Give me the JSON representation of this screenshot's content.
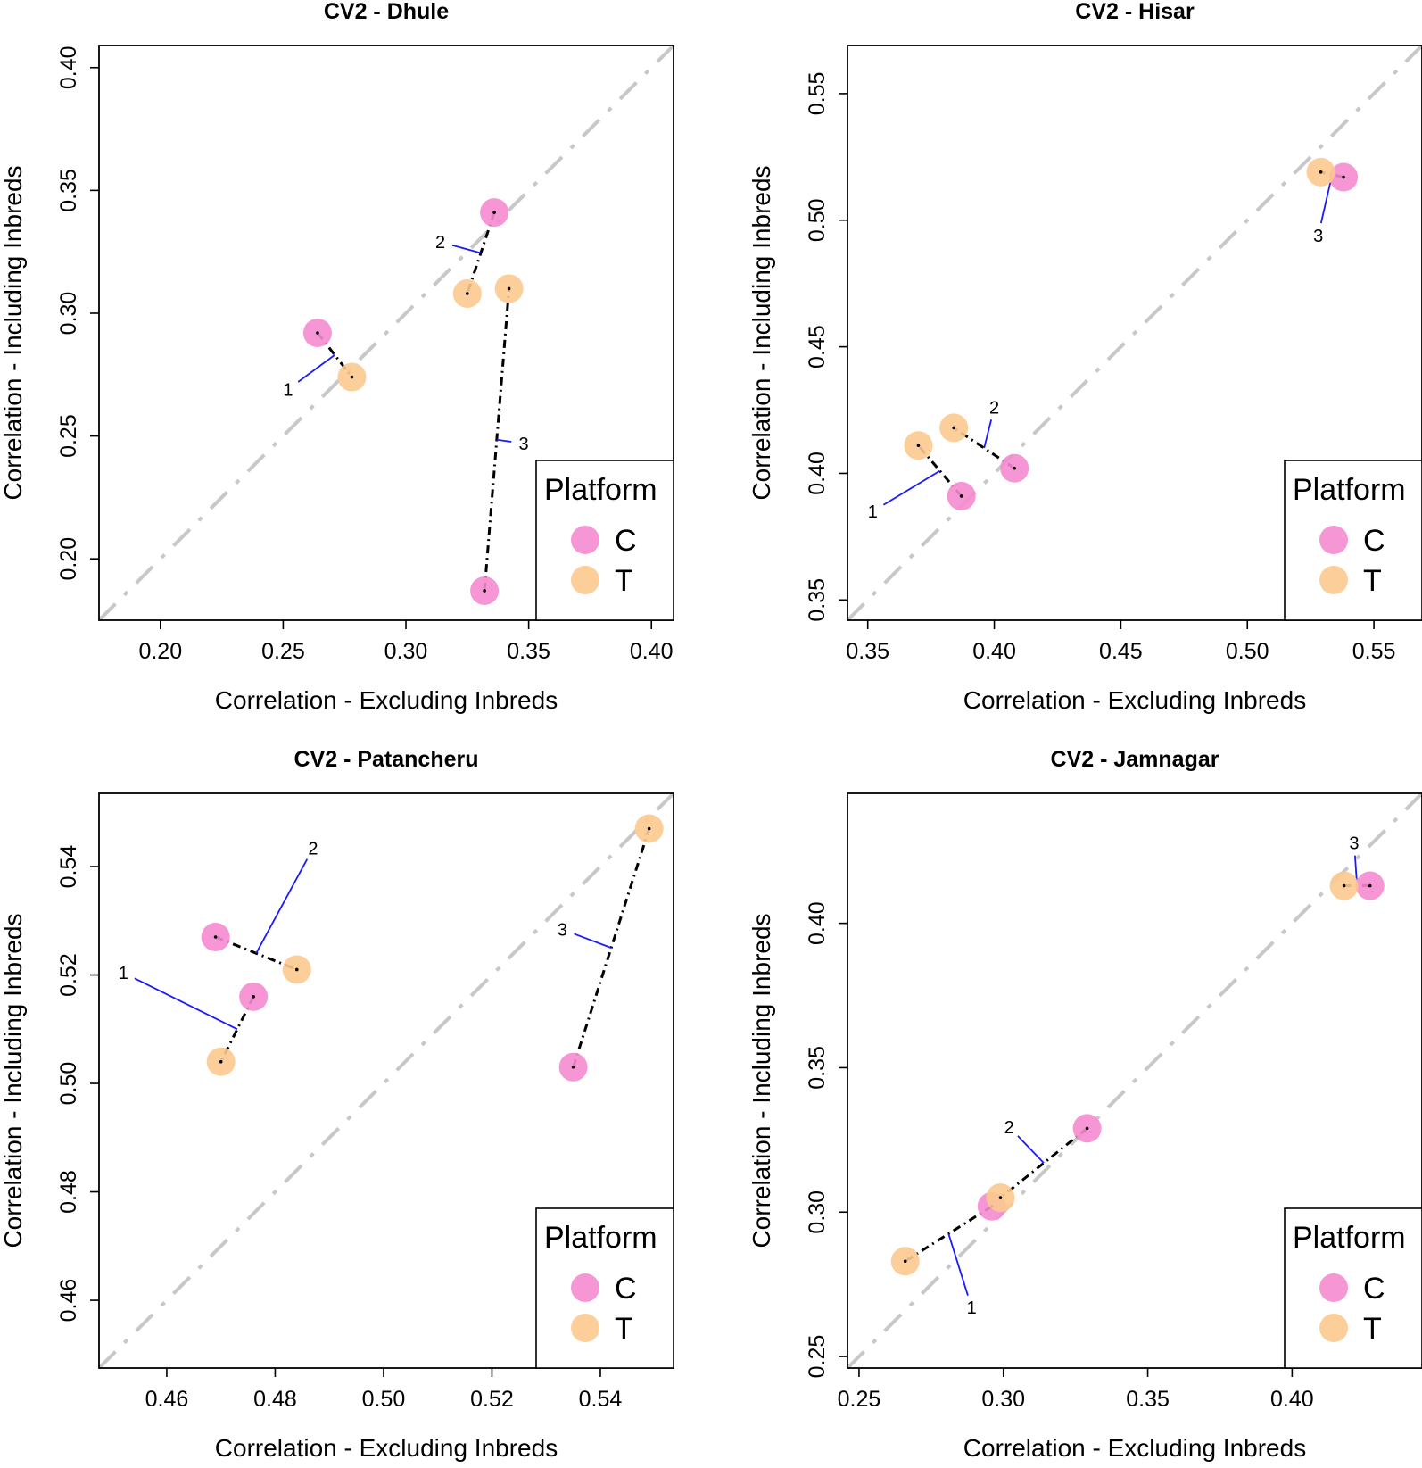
{
  "figure": {
    "colors": {
      "C": "#f58bcf",
      "T": "#fcc98f",
      "diagonal": "#c8c8c8",
      "connector": "#000000",
      "leader": "#1a1aff",
      "frame": "#000000"
    }
  },
  "chart_data": [
    {
      "type": "scatter",
      "title": "CV2 - Dhule",
      "xlabel": "Correlation - Excluding Inbreds",
      "ylabel": "Correlation - Including Inbreds",
      "xlim": [
        0.175,
        0.409
      ],
      "ylim": [
        0.175,
        0.409
      ],
      "xticks": [
        0.2,
        0.25,
        0.3,
        0.35,
        0.4
      ],
      "xtick_labels": [
        "0.20",
        "0.25",
        "0.30",
        "0.35",
        "0.40"
      ],
      "yticks": [
        0.2,
        0.25,
        0.3,
        0.35,
        0.4
      ],
      "ytick_labels": [
        "0.20",
        "0.25",
        "0.30",
        "0.35",
        "0.40"
      ],
      "legend": {
        "title": "Platform",
        "entries": [
          "C",
          "T"
        ],
        "placement": "bottom-right"
      },
      "pairs": [
        {
          "label": "1",
          "C": [
            0.264,
            0.292
          ],
          "T": [
            0.278,
            0.274
          ],
          "label_at": [
            0.252,
            0.269
          ]
        },
        {
          "label": "2",
          "C": [
            0.336,
            0.341
          ],
          "T": [
            0.325,
            0.308
          ],
          "label_at": [
            0.314,
            0.329
          ]
        },
        {
          "label": "3",
          "C": [
            0.332,
            0.187
          ],
          "T": [
            0.342,
            0.31
          ],
          "label_at": [
            0.348,
            0.247
          ]
        }
      ]
    },
    {
      "type": "scatter",
      "title": "CV2 - Hisar",
      "xlabel": "Correlation - Excluding Inbreds",
      "ylabel": "Correlation - Including Inbreds",
      "xlim": [
        0.342,
        0.569
      ],
      "ylim": [
        0.342,
        0.569
      ],
      "xticks": [
        0.35,
        0.4,
        0.45,
        0.5,
        0.55
      ],
      "xtick_labels": [
        "0.35",
        "0.40",
        "0.45",
        "0.50",
        "0.55"
      ],
      "yticks": [
        0.35,
        0.4,
        0.45,
        0.5,
        0.55
      ],
      "ytick_labels": [
        "0.35",
        "0.40",
        "0.45",
        "0.50",
        "0.55"
      ],
      "legend": {
        "title": "Platform",
        "entries": [
          "C",
          "T"
        ],
        "placement": "bottom-right"
      },
      "pairs": [
        {
          "label": "1",
          "C": [
            0.387,
            0.391
          ],
          "T": [
            0.37,
            0.411
          ],
          "label_at": [
            0.352,
            0.385
          ]
        },
        {
          "label": "2",
          "C": [
            0.408,
            0.402
          ],
          "T": [
            0.384,
            0.418
          ],
          "label_at": [
            0.4,
            0.426
          ]
        },
        {
          "label": "3",
          "C": [
            0.538,
            0.517
          ],
          "T": [
            0.529,
            0.519
          ],
          "label_at": [
            0.528,
            0.494
          ]
        }
      ]
    },
    {
      "type": "scatter",
      "title": "CV2 - Patancheru",
      "xlabel": "Correlation - Excluding Inbreds",
      "ylabel": "Correlation - Including Inbreds",
      "xlim": [
        0.4475,
        0.5535
      ],
      "ylim": [
        0.4475,
        0.5535
      ],
      "xticks": [
        0.46,
        0.48,
        0.5,
        0.52,
        0.54
      ],
      "xtick_labels": [
        "0.46",
        "0.48",
        "0.50",
        "0.52",
        "0.54"
      ],
      "yticks": [
        0.46,
        0.48,
        0.5,
        0.52,
        0.54
      ],
      "ytick_labels": [
        "0.46",
        "0.48",
        "0.50",
        "0.52",
        "0.54"
      ],
      "legend": {
        "title": "Platform",
        "entries": [
          "C",
          "T"
        ],
        "placement": "bottom-right"
      },
      "pairs": [
        {
          "label": "1",
          "C": [
            0.476,
            0.516
          ],
          "T": [
            0.47,
            0.504
          ],
          "label_at": [
            0.452,
            0.5204
          ]
        },
        {
          "label": "2",
          "C": [
            0.469,
            0.527
          ],
          "T": [
            0.484,
            0.521
          ],
          "label_at": [
            0.487,
            0.5434
          ]
        },
        {
          "label": "3",
          "C": [
            0.535,
            0.503
          ],
          "T": [
            0.549,
            0.547
          ],
          "label_at": [
            0.533,
            0.5284
          ]
        }
      ]
    },
    {
      "type": "scatter",
      "title": "CV2 - Jamnagar",
      "xlabel": "Correlation - Excluding Inbreds",
      "ylabel": "Correlation - Including Inbreds",
      "xlim": [
        0.246,
        0.445
      ],
      "ylim": [
        0.246,
        0.445
      ],
      "xticks": [
        0.25,
        0.3,
        0.35,
        0.4
      ],
      "xtick_labels": [
        "0.25",
        "0.30",
        "0.35",
        "0.40"
      ],
      "yticks": [
        0.25,
        0.3,
        0.35,
        0.4
      ],
      "ytick_labels": [
        "0.25",
        "0.30",
        "0.35",
        "0.40"
      ],
      "legend": {
        "title": "Platform",
        "entries": [
          "C",
          "T"
        ],
        "placement": "bottom-right"
      },
      "pairs": [
        {
          "label": "1",
          "C": [
            0.296,
            0.302
          ],
          "T": [
            0.266,
            0.283
          ],
          "label_at": [
            0.289,
            0.267
          ]
        },
        {
          "label": "2",
          "C": [
            0.329,
            0.329
          ],
          "T": [
            0.299,
            0.305
          ],
          "label_at": [
            0.302,
            0.3295
          ]
        },
        {
          "label": "3",
          "C": [
            0.427,
            0.413
          ],
          "T": [
            0.418,
            0.413
          ],
          "label_at": [
            0.4215,
            0.4278
          ]
        }
      ]
    }
  ]
}
